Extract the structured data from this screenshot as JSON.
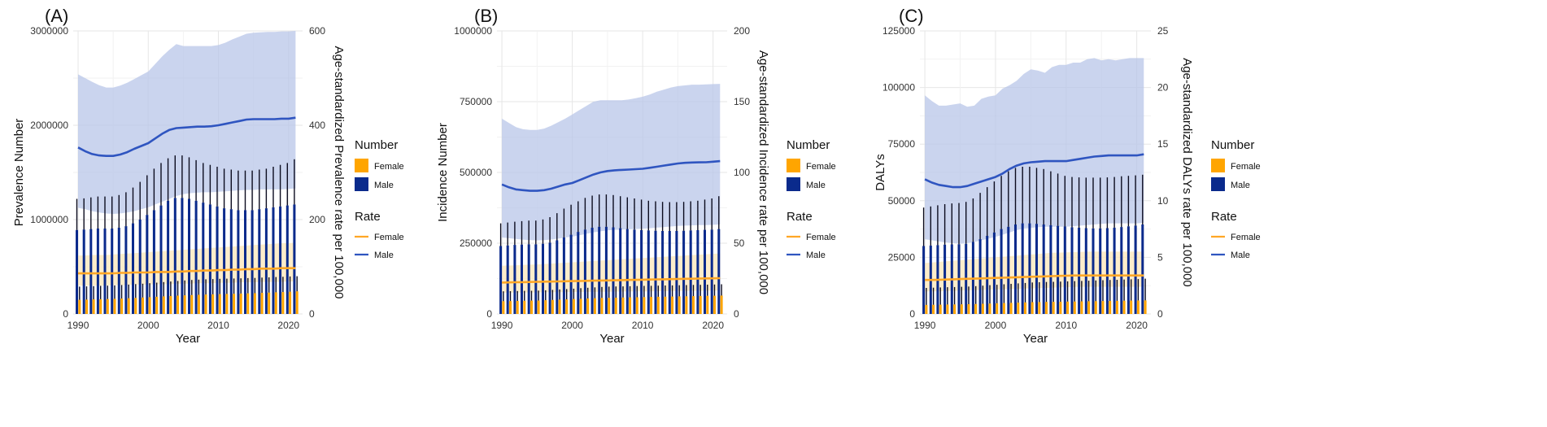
{
  "colors": {
    "female_bar": "#FFA500",
    "male_bar": "#0A2A8C",
    "female_line": "#FFA726",
    "male_line": "#2F55C0",
    "male_band": "#B8C6E8",
    "female_band": "#FCE8BE",
    "grid": "#E6E6E6"
  },
  "legend": {
    "number_title": "Number",
    "rate_title": "Rate",
    "female": "Female",
    "male": "Male"
  },
  "chart_data": [
    {
      "type": "bar+line",
      "panel": "(A)",
      "xlabel": "Year",
      "ylabel": "Prevalence Number",
      "y2label": "Age-standardized Prevalence rate per 100,000",
      "x": [
        1990,
        1991,
        1992,
        1993,
        1994,
        1995,
        1996,
        1997,
        1998,
        1999,
        2000,
        2001,
        2002,
        2003,
        2004,
        2005,
        2006,
        2007,
        2008,
        2009,
        2010,
        2011,
        2012,
        2013,
        2014,
        2015,
        2016,
        2017,
        2018,
        2019,
        2020,
        2021
      ],
      "ylim": [
        0,
        3000000
      ],
      "y2lim": [
        0,
        600
      ],
      "yticks": [
        0,
        1000000,
        2000000,
        3000000
      ],
      "yticklabels": [
        "0",
        "1000000",
        "2000000",
        "3000000"
      ],
      "y2ticks": [
        0,
        200,
        400,
        600
      ],
      "xticks": [
        1990,
        2000,
        2010,
        2020
      ],
      "female_number": [
        150000,
        152000,
        154000,
        156000,
        158000,
        160000,
        163000,
        166000,
        170000,
        174000,
        178000,
        182000,
        186000,
        190000,
        194000,
        197000,
        200000,
        203000,
        206000,
        208000,
        210000,
        212000,
        214000,
        216000,
        218000,
        220000,
        223000,
        226000,
        229000,
        232000,
        235000,
        240000
      ],
      "female_number_upper": [
        290000,
        292000,
        295000,
        298000,
        300000,
        303000,
        307000,
        311000,
        316000,
        321000,
        326000,
        332000,
        338000,
        344000,
        350000,
        355000,
        360000,
        364000,
        367000,
        370000,
        372000,
        374000,
        376000,
        378000,
        380000,
        382000,
        385000,
        388000,
        391000,
        394000,
        397000,
        400000
      ],
      "male_number": [
        890000,
        895000,
        900000,
        905000,
        905000,
        905000,
        915000,
        930000,
        960000,
        1000000,
        1050000,
        1100000,
        1150000,
        1200000,
        1230000,
        1230000,
        1220000,
        1200000,
        1180000,
        1160000,
        1140000,
        1120000,
        1110000,
        1100000,
        1100000,
        1100000,
        1110000,
        1120000,
        1130000,
        1140000,
        1150000,
        1160000
      ],
      "male_number_upper": [
        1220000,
        1225000,
        1235000,
        1245000,
        1245000,
        1245000,
        1260000,
        1290000,
        1340000,
        1400000,
        1470000,
        1540000,
        1600000,
        1650000,
        1680000,
        1680000,
        1660000,
        1630000,
        1600000,
        1580000,
        1560000,
        1540000,
        1530000,
        1520000,
        1520000,
        1520000,
        1530000,
        1540000,
        1560000,
        1580000,
        1600000,
        1640000
      ],
      "male_rate": [
        353,
        345,
        339,
        336,
        335,
        335,
        338,
        343,
        350,
        356,
        362,
        372,
        382,
        390,
        394,
        395,
        396,
        397,
        397,
        398,
        400,
        403,
        406,
        409,
        412,
        413,
        413,
        413,
        413,
        414,
        414,
        416
      ],
      "male_rate_lower": [
        225,
        222,
        218,
        215,
        213,
        212,
        213,
        215,
        218,
        222,
        226,
        232,
        238,
        244,
        250,
        254,
        256,
        257,
        258,
        258,
        259,
        260,
        261,
        262,
        263,
        263,
        264,
        264,
        264,
        264,
        265,
        266
      ],
      "male_rate_upper": [
        508,
        500,
        492,
        485,
        480,
        480,
        484,
        490,
        498,
        506,
        514,
        530,
        546,
        560,
        572,
        568,
        568,
        568,
        568,
        568,
        570,
        575,
        582,
        588,
        594,
        596,
        597,
        598,
        598,
        599,
        599,
        600
      ],
      "female_rate": [
        86,
        86,
        86,
        86,
        86,
        86,
        87,
        87,
        88,
        88,
        88,
        89,
        89,
        89,
        90,
        90,
        91,
        91,
        92,
        92,
        93,
        93,
        94,
        94,
        95,
        95,
        96,
        96,
        96,
        97,
        97,
        97
      ],
      "female_rate_lower": [
        60,
        60,
        60,
        60,
        60,
        61,
        61,
        61,
        62,
        62,
        62,
        63,
        63,
        63,
        64,
        64,
        64,
        65,
        65,
        65,
        66,
        66,
        66,
        67,
        67,
        67,
        68,
        68,
        68,
        68,
        69,
        69
      ],
      "female_rate_upper": [
        124,
        124,
        125,
        125,
        125,
        126,
        127,
        128,
        129,
        130,
        131,
        132,
        133,
        134,
        135,
        136,
        137,
        138,
        139,
        140,
        141,
        142,
        143,
        144,
        145,
        146,
        147,
        148,
        149,
        150,
        150,
        151
      ]
    },
    {
      "type": "bar+line",
      "panel": "(B)",
      "xlabel": "Year",
      "ylabel": "Incidence Number",
      "y2label": "Age-standardized Incidence rate per 100,000",
      "x": [
        1990,
        1991,
        1992,
        1993,
        1994,
        1995,
        1996,
        1997,
        1998,
        1999,
        2000,
        2001,
        2002,
        2003,
        2004,
        2005,
        2006,
        2007,
        2008,
        2009,
        2010,
        2011,
        2012,
        2013,
        2014,
        2015,
        2016,
        2017,
        2018,
        2019,
        2020,
        2021
      ],
      "ylim": [
        0,
        1000000
      ],
      "y2lim": [
        0,
        200
      ],
      "yticks": [
        0,
        250000,
        500000,
        750000,
        1000000
      ],
      "yticklabels": [
        "0",
        "250000",
        "500000",
        "750000",
        "1000000"
      ],
      "y2ticks": [
        0,
        50,
        100,
        150,
        200
      ],
      "xticks": [
        1990,
        2000,
        2010,
        2020
      ],
      "female_number": [
        45000,
        45500,
        46000,
        46500,
        47000,
        47500,
        48500,
        49500,
        50500,
        51500,
        52500,
        53500,
        54500,
        55500,
        56500,
        57000,
        57500,
        58000,
        58500,
        59000,
        59500,
        60000,
        60500,
        61000,
        61500,
        62000,
        62500,
        63000,
        63500,
        64000,
        64500,
        65000
      ],
      "female_number_upper": [
        80000,
        80500,
        81000,
        81500,
        82000,
        82500,
        83500,
        85000,
        86500,
        88000,
        89500,
        91000,
        92500,
        94000,
        95500,
        96500,
        97000,
        97500,
        98000,
        98500,
        99000,
        99500,
        100000,
        100500,
        101000,
        101500,
        102000,
        102500,
        103000,
        103500,
        104000,
        105000
      ],
      "male_number": [
        240000,
        242000,
        244000,
        245000,
        246000,
        246000,
        248000,
        252000,
        260000,
        270000,
        280000,
        290000,
        298000,
        305000,
        308000,
        308000,
        306000,
        303000,
        300000,
        298000,
        296000,
        295000,
        294000,
        293000,
        293000,
        293000,
        294000,
        295000,
        296000,
        297000,
        298000,
        300000
      ],
      "male_number_upper": [
        320000,
        323000,
        326000,
        328000,
        330000,
        330000,
        334000,
        342000,
        356000,
        372000,
        386000,
        398000,
        410000,
        418000,
        422000,
        422000,
        420000,
        416000,
        412000,
        408000,
        404000,
        400000,
        398000,
        396000,
        395000,
        395000,
        396000,
        398000,
        400000,
        404000,
        408000,
        416000
      ],
      "male_rate": [
        91.5,
        89.5,
        88,
        87.5,
        87,
        87,
        87.5,
        88.5,
        90,
        91.5,
        92.5,
        94.5,
        96.5,
        98.5,
        100,
        101,
        101.5,
        101.8,
        102,
        102.3,
        102.6,
        103.3,
        104,
        104.8,
        105.6,
        106.3,
        106.8,
        107,
        107.1,
        107.2,
        107.6,
        108
      ],
      "male_rate_lower": [
        54,
        53.5,
        53,
        52.5,
        52.2,
        52,
        52.2,
        52.6,
        53.2,
        54,
        54.6,
        55.6,
        56.6,
        57.6,
        58.4,
        59,
        59.4,
        59.6,
        59.8,
        60,
        60.2,
        60.6,
        61,
        61.4,
        61.8,
        62.2,
        62.4,
        62.6,
        62.8,
        62.8,
        63,
        63.2
      ],
      "male_rate_upper": [
        138,
        135,
        132,
        130.5,
        130,
        130,
        131,
        133,
        135.5,
        138,
        141,
        144,
        147,
        150,
        151,
        151,
        151,
        151,
        151.5,
        152.5,
        153.5,
        155,
        157,
        158.5,
        160,
        161,
        161.5,
        162,
        162,
        162.2,
        162.4,
        162.6
      ],
      "female_rate": [
        22.2,
        22.3,
        22.4,
        22.5,
        22.6,
        22.7,
        22.8,
        22.9,
        23,
        23.1,
        23.2,
        23.3,
        23.4,
        23.5,
        23.6,
        23.7,
        23.8,
        23.9,
        24,
        24.1,
        24.2,
        24.3,
        24.4,
        24.5,
        24.6,
        24.7,
        24.8,
        24.9,
        25,
        25.1,
        25.2,
        25.3
      ],
      "female_rate_lower": [
        15,
        15,
        15.1,
        15.1,
        15.2,
        15.2,
        15.3,
        15.3,
        15.4,
        15.4,
        15.5,
        15.5,
        15.6,
        15.6,
        15.7,
        15.7,
        15.8,
        15.8,
        15.9,
        15.9,
        16,
        16,
        16.1,
        16.1,
        16.2,
        16.2,
        16.3,
        16.3,
        16.4,
        16.4,
        16.5,
        16.5
      ],
      "female_rate_upper": [
        34,
        34.2,
        34.4,
        34.6,
        34.8,
        35,
        35.3,
        35.6,
        35.9,
        36.2,
        36.5,
        36.8,
        37.1,
        37.4,
        37.7,
        38,
        38.3,
        38.6,
        38.9,
        39.2,
        39.5,
        39.8,
        40.1,
        40.4,
        40.7,
        41,
        41.3,
        41.6,
        41.9,
        42.2,
        42.5,
        42.8
      ]
    },
    {
      "type": "bar+line",
      "panel": "(C)",
      "xlabel": "Year",
      "ylabel": "DALYs",
      "y2label": "Age-standardized DALYs rate per 100,000",
      "x": [
        1990,
        1991,
        1992,
        1993,
        1994,
        1995,
        1996,
        1997,
        1998,
        1999,
        2000,
        2001,
        2002,
        2003,
        2004,
        2005,
        2006,
        2007,
        2008,
        2009,
        2010,
        2011,
        2012,
        2013,
        2014,
        2015,
        2016,
        2017,
        2018,
        2019,
        2020,
        2021
      ],
      "ylim": [
        0,
        125000
      ],
      "y2lim": [
        0,
        25
      ],
      "yticks": [
        0,
        25000,
        50000,
        75000,
        100000,
        125000
      ],
      "yticklabels": [
        "0",
        "25000",
        "50000",
        "75000",
        "100000",
        "125000"
      ],
      "y2ticks": [
        0,
        5,
        10,
        15,
        20,
        25
      ],
      "xticks": [
        1990,
        2000,
        2010,
        2020
      ],
      "female_number": [
        4000,
        4050,
        4100,
        4150,
        4200,
        4250,
        4300,
        4400,
        4500,
        4600,
        4700,
        4800,
        4900,
        5000,
        5100,
        5200,
        5250,
        5300,
        5350,
        5400,
        5450,
        5500,
        5550,
        5600,
        5650,
        5700,
        5750,
        5800,
        5850,
        5900,
        5950,
        6000
      ],
      "female_number_upper": [
        11500,
        11600,
        11700,
        11800,
        11900,
        12000,
        12100,
        12300,
        12500,
        12700,
        12900,
        13100,
        13300,
        13500,
        13700,
        13900,
        14000,
        14100,
        14200,
        14300,
        14400,
        14500,
        14600,
        14700,
        14800,
        14900,
        15000,
        15100,
        15200,
        15300,
        15400,
        15600
      ],
      "male_number": [
        30000,
        30200,
        30400,
        30600,
        30700,
        30800,
        31000,
        31800,
        33000,
        34500,
        36000,
        37500,
        38500,
        39500,
        40000,
        40000,
        39800,
        39500,
        39200,
        38900,
        38600,
        38300,
        38100,
        37900,
        37800,
        37800,
        37900,
        38100,
        38400,
        38700,
        39000,
        39500
      ],
      "male_number_upper": [
        47000,
        47500,
        48000,
        48500,
        48800,
        49000,
        49500,
        51000,
        53500,
        56000,
        58500,
        61000,
        63000,
        64500,
        65000,
        65000,
        64500,
        64000,
        63000,
        62000,
        61000,
        60500,
        60300,
        60200,
        60200,
        60200,
        60300,
        60500,
        60800,
        61000,
        61200,
        61500
      ],
      "male_rate": [
        11.9,
        11.6,
        11.4,
        11.3,
        11.2,
        11.2,
        11.3,
        11.5,
        11.7,
        11.9,
        12.1,
        12.4,
        12.8,
        13.1,
        13.3,
        13.4,
        13.45,
        13.5,
        13.5,
        13.5,
        13.5,
        13.6,
        13.7,
        13.8,
        13.9,
        13.95,
        14,
        14,
        14,
        14,
        14,
        14.1
      ],
      "male_rate_lower": [
        6.6,
        6.5,
        6.4,
        6.3,
        6.25,
        6.2,
        6.25,
        6.35,
        6.5,
        6.65,
        6.8,
        7,
        7.2,
        7.4,
        7.55,
        7.6,
        7.65,
        7.7,
        7.7,
        7.7,
        7.7,
        7.75,
        7.8,
        7.85,
        7.9,
        7.95,
        8,
        8,
        8,
        8,
        8,
        8.05
      ],
      "male_rate_upper": [
        19.3,
        18.8,
        18.4,
        18.4,
        18.5,
        18.6,
        18.3,
        18.4,
        19,
        19.2,
        19.3,
        19.9,
        20.2,
        20.6,
        21.2,
        21.6,
        21.5,
        21.3,
        21.8,
        22,
        22.0,
        22.2,
        22.2,
        22.5,
        22.6,
        22.4,
        22.5,
        22.4,
        22.5,
        22.6,
        22.6,
        22.6
      ],
      "female_rate": [
        3.0,
        3.0,
        3.02,
        3.04,
        3.06,
        3.08,
        3.1,
        3.12,
        3.14,
        3.16,
        3.18,
        3.2,
        3.22,
        3.24,
        3.26,
        3.28,
        3.3,
        3.32,
        3.34,
        3.36,
        3.38,
        3.4,
        3.4,
        3.4,
        3.4,
        3.4,
        3.4,
        3.4,
        3.4,
        3.4,
        3.4,
        3.4
      ],
      "female_rate_lower": [
        2.0,
        2.0,
        2.0,
        2.02,
        2.04,
        2.06,
        2.08,
        2.1,
        2.12,
        2.14,
        2.16,
        2.18,
        2.2,
        2.22,
        2.24,
        2.26,
        2.28,
        2.3,
        2.32,
        2.34,
        2.36,
        2.38,
        2.4,
        2.4,
        2.4,
        2.4,
        2.4,
        2.4,
        2.4,
        2.4,
        2.4,
        2.4
      ],
      "female_rate_upper": [
        4.5,
        4.55,
        4.6,
        4.65,
        4.7,
        4.75,
        4.8,
        4.85,
        4.9,
        4.95,
        5.0,
        5.05,
        5.1,
        5.15,
        5.2,
        5.25,
        5.3,
        5.35,
        5.4,
        5.42,
        5.44,
        5.46,
        5.48,
        5.5,
        5.5,
        5.5,
        5.5,
        5.5,
        5.5,
        5.5,
        5.5,
        5.5
      ]
    }
  ]
}
